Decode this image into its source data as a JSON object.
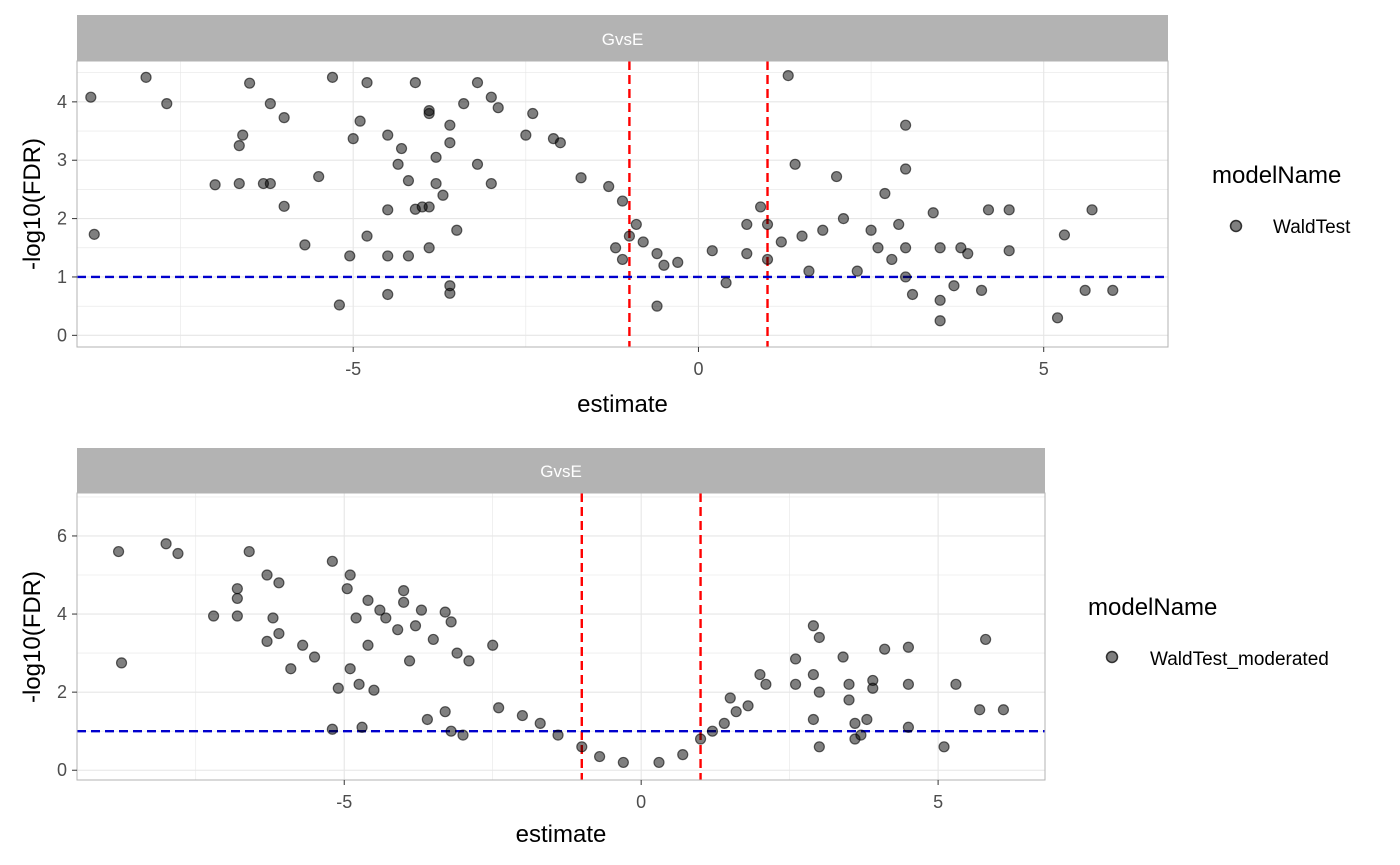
{
  "colors": {
    "point": "#000000",
    "vline": "#ff0000",
    "hline": "#0000cd",
    "strip": "#b3b3b3",
    "strip_text": "#ffffff",
    "grid": "#e6e6e6",
    "panel_border": "#b3b3b3",
    "axis_text": "#4d4d4d"
  },
  "chart_data": [
    {
      "type": "scatter",
      "facet_label": "GvsE",
      "xlabel": "estimate",
      "ylabel": "-log10(FDR)",
      "xlim": [
        -9.0,
        6.8
      ],
      "ylim": [
        -0.2,
        4.7
      ],
      "x_ticks": [
        -5,
        0,
        5
      ],
      "x_tick_labels": [
        "-5",
        "0",
        "5"
      ],
      "y_ticks": [
        0,
        1,
        2,
        3,
        4
      ],
      "y_tick_labels": [
        "0",
        "1",
        "2",
        "3",
        "4"
      ],
      "reference_lines": {
        "vertical": [
          -1,
          1
        ],
        "horizontal": [
          1
        ]
      },
      "legend": {
        "title": "modelName",
        "entries": [
          "WaldTest"
        ],
        "position": "right"
      },
      "grid": true,
      "series": [
        {
          "name": "WaldTest",
          "points": [
            [
              -8.8,
              4.08
            ],
            [
              -8.0,
              4.42
            ],
            [
              -7.7,
              3.97
            ],
            [
              -8.75,
              1.73
            ],
            [
              -6.6,
              3.43
            ],
            [
              -6.65,
              3.25
            ],
            [
              -6.65,
              2.6
            ],
            [
              -7.0,
              2.58
            ],
            [
              -6.5,
              4.32
            ],
            [
              -6.2,
              3.97
            ],
            [
              -6.0,
              3.73
            ],
            [
              -6.3,
              2.6
            ],
            [
              -6.2,
              2.6
            ],
            [
              -6.0,
              2.21
            ],
            [
              -5.7,
              1.55
            ],
            [
              -5.5,
              2.72
            ],
            [
              -5.0,
              3.37
            ],
            [
              -5.3,
              4.42
            ],
            [
              -4.9,
              3.67
            ],
            [
              -4.8,
              4.33
            ],
            [
              -4.5,
              3.43
            ],
            [
              -4.3,
              3.2
            ],
            [
              -4.35,
              2.93
            ],
            [
              -4.2,
              2.65
            ],
            [
              -4.1,
              2.16
            ],
            [
              -4.0,
              2.2
            ],
            [
              -4.5,
              2.15
            ],
            [
              -4.8,
              1.7
            ],
            [
              -5.05,
              1.36
            ],
            [
              -5.2,
              0.52
            ],
            [
              -4.5,
              1.36
            ],
            [
              -4.5,
              0.7
            ],
            [
              -4.2,
              1.36
            ],
            [
              -3.9,
              1.5
            ],
            [
              -3.8,
              2.6
            ],
            [
              -3.9,
              3.8
            ],
            [
              -3.9,
              3.85
            ],
            [
              -4.1,
              4.33
            ],
            [
              -3.6,
              3.6
            ],
            [
              -3.4,
              3.97
            ],
            [
              -3.0,
              4.08
            ],
            [
              -2.9,
              3.9
            ],
            [
              -3.2,
              4.33
            ],
            [
              -2.4,
              3.8
            ],
            [
              -3.6,
              3.3
            ],
            [
              -3.8,
              3.05
            ],
            [
              -3.2,
              2.93
            ],
            [
              -3.0,
              2.6
            ],
            [
              -3.7,
              2.4
            ],
            [
              -3.9,
              2.2
            ],
            [
              -3.5,
              1.8
            ],
            [
              -3.6,
              0.85
            ],
            [
              -3.6,
              0.72
            ],
            [
              -2.5,
              3.43
            ],
            [
              -2.1,
              3.37
            ],
            [
              -2.0,
              3.3
            ],
            [
              -1.7,
              2.7
            ],
            [
              -1.3,
              2.55
            ],
            [
              -1.1,
              2.3
            ],
            [
              -0.9,
              1.9
            ],
            [
              -1.0,
              1.7
            ],
            [
              -1.2,
              1.5
            ],
            [
              -1.1,
              1.3
            ],
            [
              -0.8,
              1.6
            ],
            [
              -0.6,
              1.4
            ],
            [
              -0.5,
              1.2
            ],
            [
              -0.6,
              0.5
            ],
            [
              -0.3,
              1.25
            ],
            [
              0.2,
              1.45
            ],
            [
              0.4,
              0.9
            ],
            [
              0.7,
              1.9
            ],
            [
              0.7,
              1.4
            ],
            [
              0.9,
              2.2
            ],
            [
              1.0,
              1.3
            ],
            [
              1.0,
              1.9
            ],
            [
              1.2,
              1.6
            ],
            [
              1.3,
              4.45
            ],
            [
              1.4,
              2.93
            ],
            [
              1.5,
              1.7
            ],
            [
              1.6,
              1.1
            ],
            [
              1.8,
              1.8
            ],
            [
              2.0,
              2.72
            ],
            [
              2.1,
              2.0
            ],
            [
              2.3,
              1.1
            ],
            [
              2.5,
              1.8
            ],
            [
              2.7,
              2.43
            ],
            [
              2.6,
              1.5
            ],
            [
              2.8,
              1.3
            ],
            [
              3.0,
              3.6
            ],
            [
              3.0,
              2.85
            ],
            [
              2.9,
              1.9
            ],
            [
              3.0,
              1.5
            ],
            [
              3.0,
              1.0
            ],
            [
              3.1,
              0.7
            ],
            [
              3.4,
              2.1
            ],
            [
              3.5,
              1.5
            ],
            [
              3.5,
              0.6
            ],
            [
              3.5,
              0.25
            ],
            [
              3.7,
              0.85
            ],
            [
              3.8,
              1.5
            ],
            [
              3.9,
              1.4
            ],
            [
              4.1,
              0.77
            ],
            [
              4.2,
              2.15
            ],
            [
              4.5,
              2.15
            ],
            [
              4.5,
              1.45
            ],
            [
              5.2,
              0.3
            ],
            [
              5.3,
              1.72
            ],
            [
              5.6,
              0.77
            ],
            [
              5.7,
              2.15
            ],
            [
              6.0,
              0.77
            ]
          ]
        }
      ]
    },
    {
      "type": "scatter",
      "facet_label": "GvsE",
      "xlabel": "estimate",
      "ylabel": "-log10(FDR)",
      "xlim": [
        -9.5,
        6.8
      ],
      "ylim": [
        -0.25,
        7.1
      ],
      "x_ticks": [
        -5,
        0,
        5
      ],
      "x_tick_labels": [
        "-5",
        "0",
        "5"
      ],
      "y_ticks": [
        0,
        2,
        4,
        6
      ],
      "y_tick_labels": [
        "0",
        "2",
        "4",
        "6"
      ],
      "reference_lines": {
        "vertical": [
          -1,
          1
        ],
        "horizontal": [
          1
        ]
      },
      "legend": {
        "title": "modelName",
        "entries": [
          "WaldTest_moderated"
        ],
        "position": "right"
      },
      "grid": true,
      "series": [
        {
          "name": "WaldTest_moderated",
          "points": [
            [
              -8.8,
              5.6
            ],
            [
              -8.0,
              5.8
            ],
            [
              -7.8,
              5.55
            ],
            [
              -8.75,
              2.75
            ],
            [
              -6.6,
              5.6
            ],
            [
              -6.8,
              4.65
            ],
            [
              -6.8,
              4.4
            ],
            [
              -6.8,
              3.95
            ],
            [
              -7.2,
              3.95
            ],
            [
              -6.3,
              5.0
            ],
            [
              -6.1,
              4.8
            ],
            [
              -6.2,
              3.9
            ],
            [
              -6.1,
              3.5
            ],
            [
              -6.3,
              3.3
            ],
            [
              -5.7,
              3.2
            ],
            [
              -5.5,
              2.9
            ],
            [
              -5.9,
              2.6
            ],
            [
              -5.2,
              5.35
            ],
            [
              -4.9,
              5.0
            ],
            [
              -4.95,
              4.65
            ],
            [
              -4.6,
              4.35
            ],
            [
              -4.4,
              4.1
            ],
            [
              -4.0,
              4.6
            ],
            [
              -4.0,
              4.3
            ],
            [
              -3.7,
              4.1
            ],
            [
              -3.3,
              4.05
            ],
            [
              -4.8,
              3.9
            ],
            [
              -4.6,
              3.2
            ],
            [
              -4.3,
              3.9
            ],
            [
              -4.1,
              3.6
            ],
            [
              -3.8,
              3.7
            ],
            [
              -3.5,
              3.35
            ],
            [
              -3.9,
              2.8
            ],
            [
              -3.2,
              3.8
            ],
            [
              -3.1,
              3.0
            ],
            [
              -2.9,
              2.8
            ],
            [
              -2.5,
              3.2
            ],
            [
              -4.5,
              2.05
            ],
            [
              -4.75,
              2.2
            ],
            [
              -5.1,
              2.1
            ],
            [
              -4.9,
              2.6
            ],
            [
              -5.2,
              1.05
            ],
            [
              -4.7,
              1.1
            ],
            [
              -3.6,
              1.3
            ],
            [
              -3.3,
              1.5
            ],
            [
              -3.2,
              1.0
            ],
            [
              -3.0,
              0.9
            ],
            [
              -2.4,
              1.6
            ],
            [
              -2.0,
              1.4
            ],
            [
              -1.7,
              1.2
            ],
            [
              -1.4,
              0.9
            ],
            [
              -1.0,
              0.6
            ],
            [
              -0.7,
              0.35
            ],
            [
              -0.3,
              0.2
            ],
            [
              0.3,
              0.2
            ],
            [
              0.7,
              0.4
            ],
            [
              1.0,
              0.8
            ],
            [
              1.2,
              1.0
            ],
            [
              1.4,
              1.2
            ],
            [
              1.6,
              1.5
            ],
            [
              1.8,
              1.65
            ],
            [
              1.5,
              1.85
            ],
            [
              2.0,
              2.45
            ],
            [
              2.1,
              2.2
            ],
            [
              2.6,
              2.85
            ],
            [
              2.6,
              2.2
            ],
            [
              2.9,
              3.7
            ],
            [
              2.9,
              2.45
            ],
            [
              3.0,
              3.4
            ],
            [
              3.0,
              2.0
            ],
            [
              2.9,
              1.3
            ],
            [
              3.0,
              0.6
            ],
            [
              3.4,
              2.9
            ],
            [
              3.5,
              2.2
            ],
            [
              3.5,
              1.8
            ],
            [
              3.6,
              1.2
            ],
            [
              3.6,
              0.8
            ],
            [
              3.7,
              0.9
            ],
            [
              3.9,
              2.3
            ],
            [
              3.9,
              2.1
            ],
            [
              3.8,
              1.3
            ],
            [
              4.1,
              3.1
            ],
            [
              4.5,
              3.15
            ],
            [
              4.5,
              2.2
            ],
            [
              4.5,
              1.1
            ],
            [
              5.1,
              0.6
            ],
            [
              5.3,
              2.2
            ],
            [
              5.7,
              1.55
            ],
            [
              5.8,
              3.35
            ],
            [
              6.1,
              1.55
            ]
          ]
        }
      ]
    }
  ]
}
